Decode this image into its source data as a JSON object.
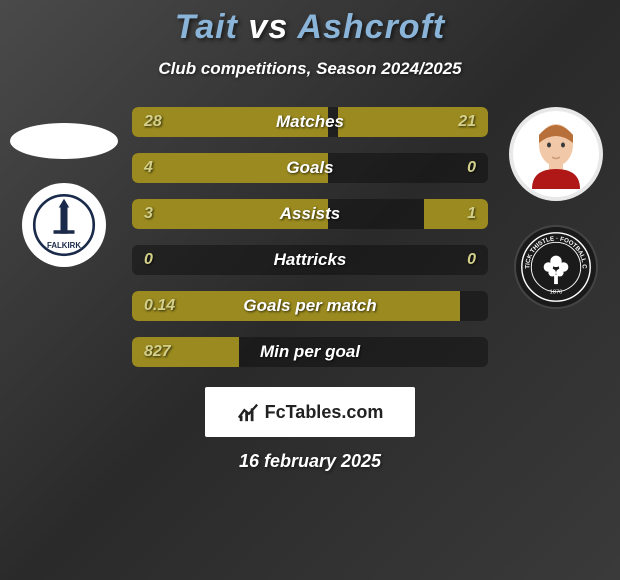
{
  "title": {
    "player1": "Tait",
    "vs": "vs",
    "player2": "Ashcroft"
  },
  "subtitle": "Club competitions, Season 2024/2025",
  "colors": {
    "bar_left": "#9a8a1f",
    "bar_right": "#9a8a1f",
    "value_text": "#d4d08a",
    "label_text": "#ffffff"
  },
  "stats": [
    {
      "label": "Matches",
      "left_val": "28",
      "right_val": "21",
      "left_pct": 55,
      "right_pct": 42
    },
    {
      "label": "Goals",
      "left_val": "4",
      "right_val": "0",
      "left_pct": 55,
      "right_pct": 0
    },
    {
      "label": "Assists",
      "left_val": "3",
      "right_val": "1",
      "left_pct": 55,
      "right_pct": 18
    },
    {
      "label": "Hattricks",
      "left_val": "0",
      "right_val": "0",
      "left_pct": 0,
      "right_pct": 0
    },
    {
      "label": "Goals per match",
      "left_val": "0.14",
      "right_val": "",
      "left_pct": 92,
      "right_pct": 0
    },
    {
      "label": "Min per goal",
      "left_val": "827",
      "right_val": "",
      "left_pct": 30,
      "right_pct": 0
    }
  ],
  "footer_brand": "FcTables.com",
  "date": "16 february 2025",
  "badges": {
    "left_club_text": "FALKIRK",
    "right_club_text": "PARTICK THISTLE"
  }
}
